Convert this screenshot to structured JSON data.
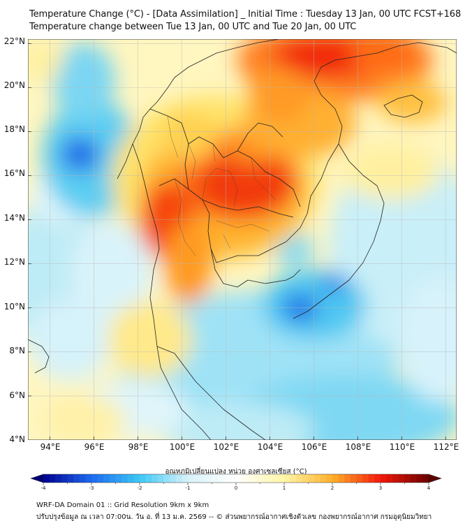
{
  "header": {
    "title_line1": "Temperature Change (°C) - [Data Assimilation] _ Initial Time : Tuesday 13 Jan, 00 UTC FCST+168",
    "title_line2": "Temperature change between Tue 13 Jan, 00 UTC and Tue 20 Jan, 00 UTC"
  },
  "map": {
    "lat_labels": [
      "22°N",
      "20°N",
      "18°N",
      "16°N",
      "14°N",
      "12°N",
      "10°N",
      "8°N",
      "6°N",
      "4°N"
    ],
    "lon_labels": [
      "94°E",
      "96°E",
      "98°E",
      "100°E",
      "102°E",
      "104°E",
      "106°E",
      "108°E",
      "110°E",
      "112°E"
    ],
    "extent": {
      "lon_min": 93,
      "lon_max": 112.5,
      "lat_min": 4,
      "lat_max": 22.2
    }
  },
  "colorbar": {
    "title": "อุณหภูมิเปลี่ยนแปลง หน่วย องศาเซลเซียส (°C)",
    "tick_labels": [
      "-4",
      "-3",
      "-2",
      "-1",
      "0",
      "1",
      "2",
      "3",
      "4"
    ],
    "range": [
      -4,
      4
    ],
    "colors": {
      "strong_cold": "#000090",
      "cold": "#1E6BF0",
      "cool": "#3CC8F5",
      "light": "#D8F2FA",
      "neutral": "#FFFFFF",
      "warm_light": "#FFF6A8",
      "warm": "#FFB02A",
      "hot": "#F21A0A",
      "extreme": "#6A0000"
    }
  },
  "footer": {
    "line1": "WRF-DA Domain 01 :: Grid Resolution 9km x 9km",
    "line2": "ปรับปรุงข้อมูล ณ เวลา 07:00น. วัน อ. ที่ 13 ม.ค. 2569 -- © ส่วนพยากรณ์อากาศเชิงตัวเลข กองพยากรณ์อากาศ กรมอุตุนิยมวิทยา"
  }
}
